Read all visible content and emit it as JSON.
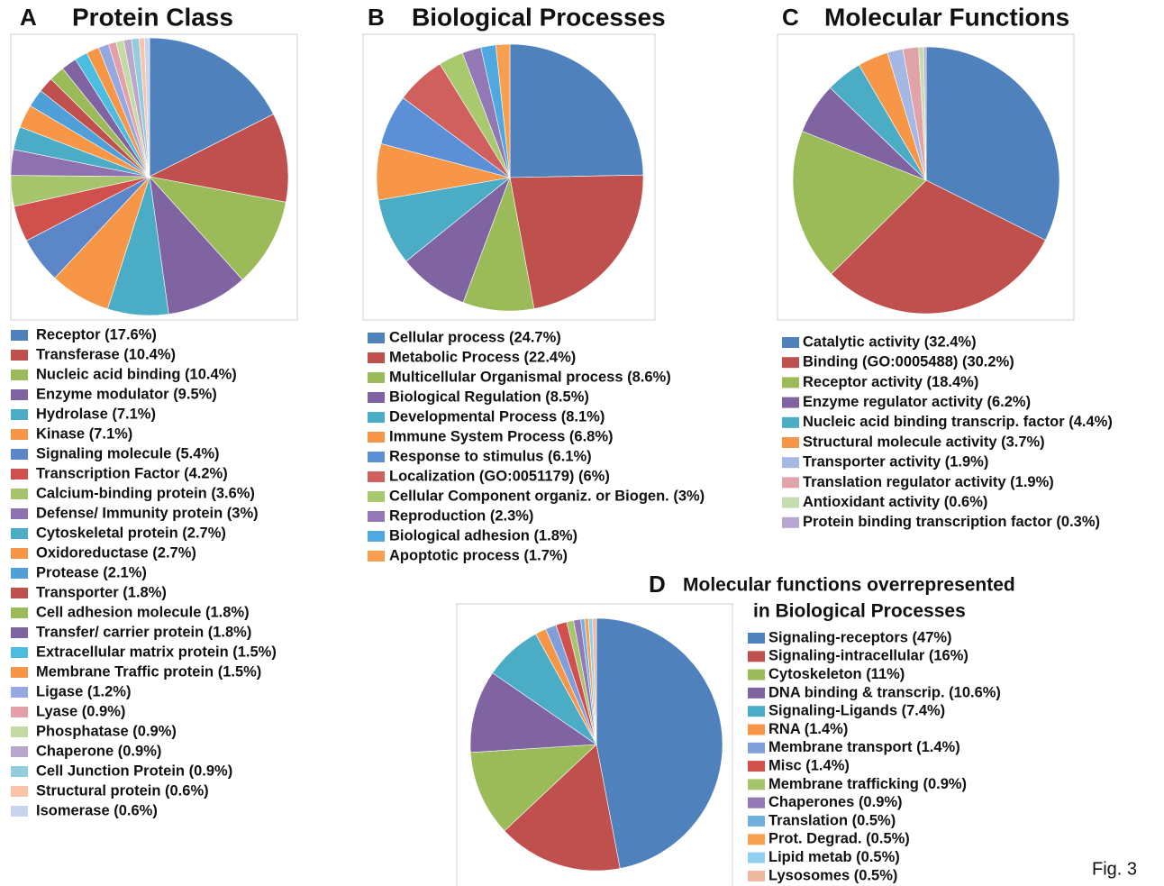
{
  "figure_label": "Fig. 3",
  "chart_data": [
    {
      "type": "pie",
      "panel": "A",
      "title": "Protein Class",
      "categories": [
        "Receptor (17.6%)",
        "Transferase (10.4%)",
        "Nucleic acid binding (10.4%)",
        "Enzyme modulator (9.5%)",
        "Hydrolase (7.1%)",
        "Kinase (7.1%)",
        "Signaling molecule (5.4%)",
        "Transcription Factor (4.2%)",
        "Calcium-binding protein (3.6%)",
        "Defense/ Immunity protein (3%)",
        "Cytoskeletal protein (2.7%)",
        "Oxidoreductase (2.7%)",
        "Protease (2.1%)",
        "Transporter (1.8%)",
        "Cell adhesion molecule (1.8%)",
        "Transfer/ carrier protein (1.8%)",
        "Extracellular matrix protein (1.5%)",
        "Membrane Traffic protein (1.5%)",
        "Ligase (1.2%)",
        "Lyase (0.9%)",
        "Phosphatase (0.9%)",
        "Chaperone (0.9%)",
        "Cell Junction Protein (0.9%)",
        "Structural protein (0.6%)",
        "Isomerase (0.6%)"
      ],
      "values": [
        17.6,
        10.4,
        10.4,
        9.5,
        7.1,
        7.1,
        5.4,
        4.2,
        3.6,
        3,
        2.7,
        2.7,
        2.1,
        1.8,
        1.8,
        1.8,
        1.5,
        1.5,
        1.2,
        0.9,
        0.9,
        0.9,
        0.9,
        0.6,
        0.6
      ],
      "colors": [
        "#4F81BD",
        "#C0504D",
        "#9BBB59",
        "#8064A2",
        "#4BACC6",
        "#F79646",
        "#5B87C8",
        "#D0504D",
        "#A5C46B",
        "#8E72B0",
        "#4BACC6",
        "#F79646",
        "#4F9FD8",
        "#C0504D",
        "#9BBB59",
        "#8064A2",
        "#4BBDE0",
        "#F79646",
        "#95A9E0",
        "#E3A0A8",
        "#C3DBA2",
        "#B9A6CC",
        "#93CDDD",
        "#FAC2A6",
        "#C6D4EE"
      ]
    },
    {
      "type": "pie",
      "panel": "B",
      "title": "Biological Processes",
      "categories": [
        "Cellular process (24.7%)",
        "Metabolic Process (22.4%)",
        "Multicellular Organismal process (8.6%)",
        "Biological Regulation (8.5%)",
        "Developmental Process (8.1%)",
        "Immune System Process (6.8%)",
        "Response to stimulus (6.1%)",
        "Localization (GO:0051179) (6%)",
        "Cellular Component organiz. or Biogen. (3%)",
        "Reproduction (2.3%)",
        "Biological adhesion (1.8%)",
        "Apoptotic process (1.7%)"
      ],
      "values": [
        24.7,
        22.4,
        8.6,
        8.5,
        8.1,
        6.8,
        6.1,
        6,
        3,
        2.3,
        1.8,
        1.7
      ],
      "colors": [
        "#4F81BD",
        "#C0504D",
        "#9BBB59",
        "#8064A2",
        "#4BACC6",
        "#F79646",
        "#5B8FD6",
        "#D0605D",
        "#A9C96E",
        "#9278B5",
        "#4FA8E0",
        "#F99F50"
      ]
    },
    {
      "type": "pie",
      "panel": "C",
      "title": "Molecular Functions",
      "categories": [
        "Catalytic activity (32.4%)",
        "Binding (GO:0005488) (30.2%)",
        "Receptor activity (18.4%)",
        "Enzyme regulator activity (6.2%)",
        "Nucleic acid binding transcrip. factor (4.4%)",
        "Structural molecule activity (3.7%)",
        "Transporter activity (1.9%)",
        "Translation regulator activity (1.9%)",
        "Antioxidant activity (0.6%)",
        "Protein binding transcription factor (0.3%)"
      ],
      "values": [
        32.4,
        30.2,
        18.4,
        6.2,
        4.4,
        3.7,
        1.9,
        1.9,
        0.6,
        0.3
      ],
      "colors": [
        "#4F81BD",
        "#C0504D",
        "#9BBB59",
        "#8064A2",
        "#4BACC6",
        "#F79646",
        "#A5B8E3",
        "#E0A4A8",
        "#C4DCB0",
        "#B7A6CF"
      ]
    },
    {
      "type": "pie",
      "panel": "D",
      "title": [
        "Molecular functions overrepresented",
        "in Biological Processes"
      ],
      "categories": [
        "Signaling-receptors (47%)",
        "Signaling-intracellular (16%)",
        "Cytoskeleton (11%)",
        "DNA binding & transcrip. (10.6%)",
        "Signaling-Ligands (7.4%)",
        "RNA (1.4%)",
        "Membrane transport (1.4%)",
        "Misc (1.4%)",
        "Membrane trafficking (0.9%)",
        "Chaperones (0.9%)",
        "Translation (0.5%)",
        "Prot. Degrad. (0.5%)",
        "Lipid metab (0.5%)",
        "Lysosomes (0.5%)"
      ],
      "values": [
        47,
        16,
        11,
        10.6,
        7.4,
        1.4,
        1.4,
        1.4,
        0.9,
        0.9,
        0.5,
        0.5,
        0.5,
        0.5
      ],
      "colors": [
        "#4F81BD",
        "#C0504D",
        "#9BBB59",
        "#8064A2",
        "#4BACC6",
        "#F79646",
        "#7F9FDB",
        "#D0504D",
        "#A5C46B",
        "#9278B5",
        "#6FB0E0",
        "#F9A050",
        "#8FD0F0",
        "#F0B8A0"
      ]
    }
  ]
}
